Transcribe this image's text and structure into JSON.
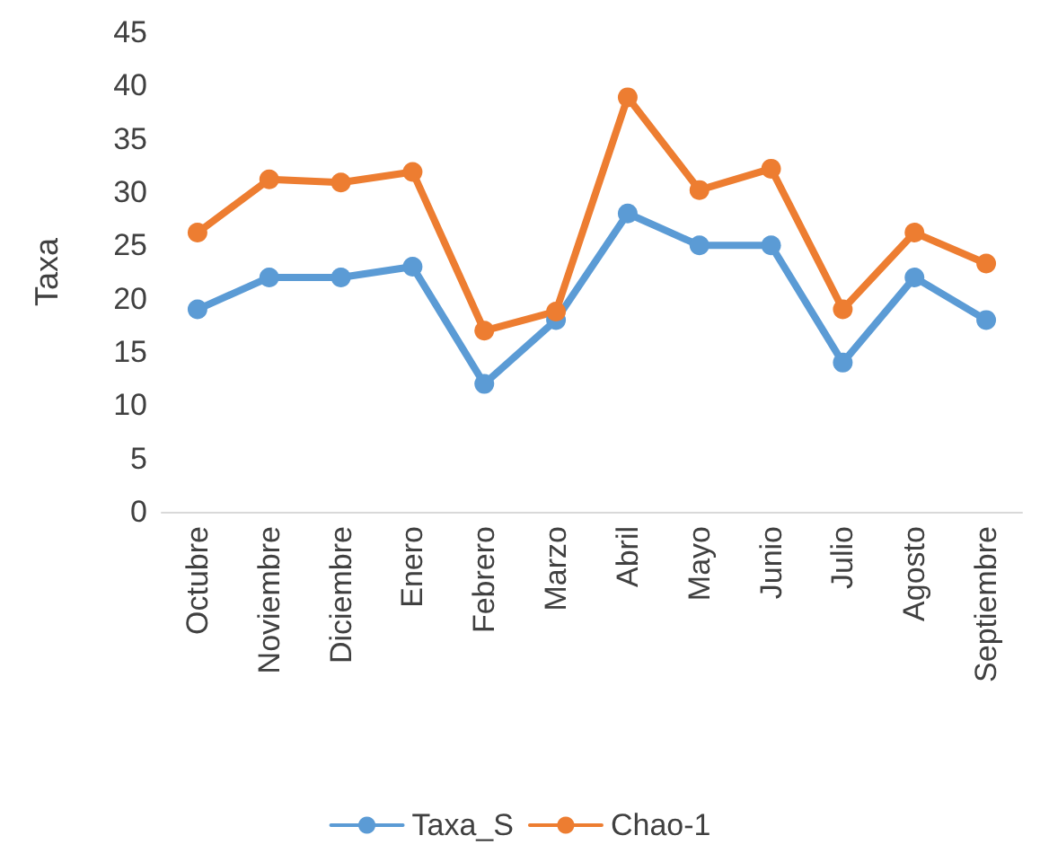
{
  "chart_data": {
    "type": "line",
    "ylabel": "Taxa",
    "categories": [
      "Octubre",
      "Noviembre",
      "Diciembre",
      "Enero",
      "Febrero",
      "Marzo",
      "Abril",
      "Mayo",
      "Junio",
      "Julio",
      "Agosto",
      "Septiembre"
    ],
    "series": [
      {
        "name": "Taxa_S",
        "color": "#5b9bd5",
        "values": [
          19,
          22,
          22,
          23,
          12,
          18,
          28,
          25,
          25,
          14,
          22,
          18
        ]
      },
      {
        "name": "Chao-1",
        "color": "#ed7d31",
        "values": [
          26.2,
          31.2,
          30.9,
          31.9,
          17,
          18.8,
          38.9,
          30.2,
          32.2,
          19,
          26.2,
          23.3
        ]
      }
    ],
    "ylim": [
      0,
      45
    ],
    "yticks": [
      0,
      5,
      10,
      15,
      20,
      25,
      30,
      35,
      40,
      45
    ],
    "grid": false,
    "legend": "bottom",
    "marker": "circle",
    "line_style": "solid"
  }
}
